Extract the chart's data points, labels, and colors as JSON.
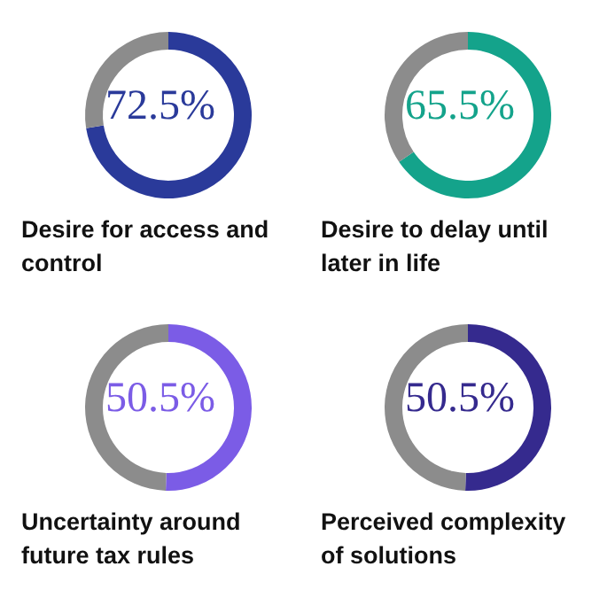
{
  "chart_data": [
    {
      "type": "donut",
      "title": "Desire for access and control",
      "categories": [
        null,
        null
      ],
      "values": [
        72.5,
        27.5
      ],
      "colors": [
        "#2a3a9a",
        "#8c8c8c"
      ],
      "annotations": [
        "72.5%"
      ]
    },
    {
      "type": "donut",
      "title": "Desire to delay until later in life",
      "categories": [
        null,
        null
      ],
      "values": [
        65.5,
        34.5
      ],
      "colors": [
        "#14a38b",
        "#8c8c8c"
      ],
      "annotations": [
        "65.5%"
      ]
    },
    {
      "type": "donut",
      "title": "Uncertainty around future tax rules",
      "categories": [
        null,
        null
      ],
      "values": [
        50.5,
        49.5
      ],
      "colors": [
        "#7b5ce6",
        "#8c8c8c"
      ],
      "annotations": [
        "50.5%"
      ]
    },
    {
      "type": "donut",
      "title": "Perceived complexity of solutions",
      "categories": [
        null,
        null
      ],
      "values": [
        50.5,
        49.5
      ],
      "colors": [
        "#352a8e",
        "#8c8c8c"
      ],
      "annotations": [
        "50.5%"
      ]
    }
  ]
}
